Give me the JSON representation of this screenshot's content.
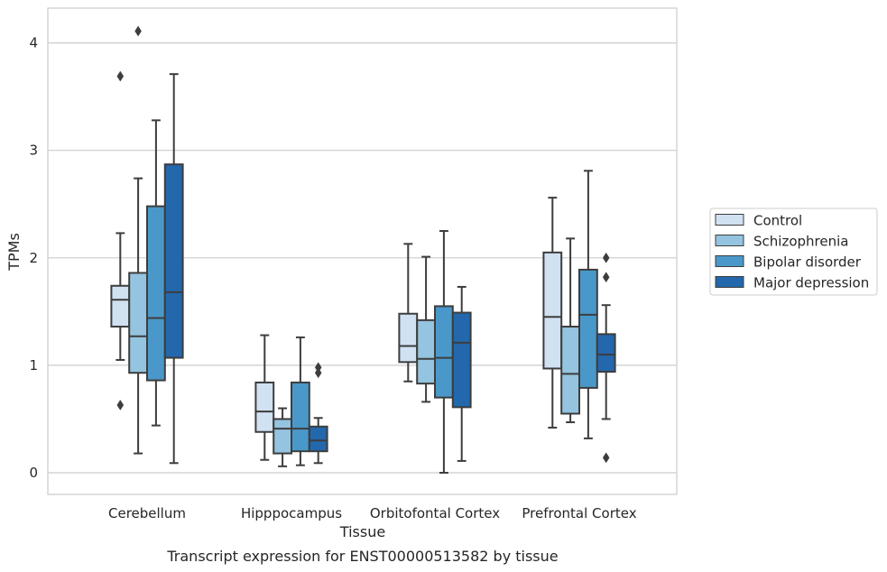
{
  "chart_data": {
    "type": "box",
    "title": "",
    "caption": "Transcript expression for ENST00000513582 by tissue",
    "xlabel": "Tissue",
    "ylabel": "TPMs",
    "ylim": [
      -0.2,
      4.3
    ],
    "yticks": [
      0,
      1,
      2,
      3,
      4
    ],
    "grid": "horizontal",
    "legend": "right",
    "categories": [
      "Cerebellum",
      "Hipppocampus",
      "Orbitofontal Cortex",
      "Prefrontal Cortex"
    ],
    "series": [
      {
        "name": "Control",
        "color": "#d0e1f2",
        "boxes": [
          {
            "whislo": 1.05,
            "q1": 1.36,
            "med": 1.61,
            "q3": 1.74,
            "whishi": 2.23,
            "fliers": [
              3.69,
              0.63
            ]
          },
          {
            "whislo": 0.12,
            "q1": 0.38,
            "med": 0.57,
            "q3": 0.84,
            "whishi": 1.28,
            "fliers": []
          },
          {
            "whislo": 0.85,
            "q1": 1.03,
            "med": 1.18,
            "q3": 1.48,
            "whishi": 2.13,
            "fliers": []
          },
          {
            "whislo": 0.42,
            "q1": 0.97,
            "med": 1.45,
            "q3": 2.05,
            "whishi": 2.56,
            "fliers": []
          }
        ]
      },
      {
        "name": "Schizophrenia",
        "color": "#94c4df",
        "boxes": [
          {
            "whislo": 0.18,
            "q1": 0.93,
            "med": 1.27,
            "q3": 1.86,
            "whishi": 2.74,
            "fliers": [
              4.11
            ]
          },
          {
            "whislo": 0.06,
            "q1": 0.18,
            "med": 0.41,
            "q3": 0.5,
            "whishi": 0.6,
            "fliers": []
          },
          {
            "whislo": 0.66,
            "q1": 0.83,
            "med": 1.06,
            "q3": 1.42,
            "whishi": 2.01,
            "fliers": []
          },
          {
            "whislo": 0.47,
            "q1": 0.55,
            "med": 0.92,
            "q3": 1.36,
            "whishi": 2.18,
            "fliers": []
          }
        ]
      },
      {
        "name": "Bipolar disorder",
        "color": "#4a98c9",
        "boxes": [
          {
            "whislo": 0.44,
            "q1": 0.86,
            "med": 1.44,
            "q3": 2.48,
            "whishi": 3.28,
            "fliers": []
          },
          {
            "whislo": 0.07,
            "q1": 0.2,
            "med": 0.41,
            "q3": 0.84,
            "whishi": 1.26,
            "fliers": []
          },
          {
            "whislo": 0.0,
            "q1": 0.7,
            "med": 1.07,
            "q3": 1.55,
            "whishi": 2.25,
            "fliers": []
          },
          {
            "whislo": 0.32,
            "q1": 0.79,
            "med": 1.47,
            "q3": 1.89,
            "whishi": 2.81,
            "fliers": []
          }
        ]
      },
      {
        "name": "Major depression",
        "color": "#2367ac",
        "boxes": [
          {
            "whislo": 0.09,
            "q1": 1.07,
            "med": 1.68,
            "q3": 2.87,
            "whishi": 3.71,
            "fliers": []
          },
          {
            "whislo": 0.09,
            "q1": 0.2,
            "med": 0.3,
            "q3": 0.43,
            "whishi": 0.51,
            "fliers": [
              0.93,
              0.98
            ]
          },
          {
            "whislo": 0.11,
            "q1": 0.61,
            "med": 1.21,
            "q3": 1.49,
            "whishi": 1.73,
            "fliers": []
          },
          {
            "whislo": 0.5,
            "q1": 0.94,
            "med": 1.1,
            "q3": 1.29,
            "whishi": 1.56,
            "fliers": [
              2.0,
              1.82,
              0.14
            ]
          }
        ]
      }
    ]
  }
}
